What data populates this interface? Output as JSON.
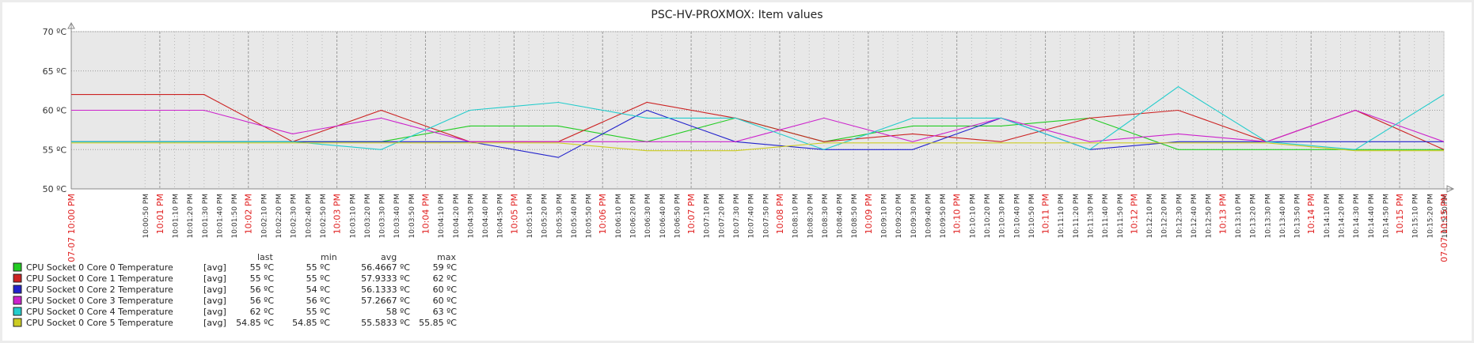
{
  "chart_data": {
    "type": "line",
    "title": "PSC-HV-PROXMOX: Item values",
    "y_unit": "ºC",
    "ylim": [
      50,
      70
    ],
    "y_ticks": [
      50,
      55,
      60,
      65,
      70
    ],
    "grid": true,
    "x": [
      "10:00 PM",
      "10:05 PM",
      "10:10 PM",
      "10:15 PM"
    ],
    "x_start_label": "07-07 10:00 PM",
    "x_end_label": "07-07 10:15 PM",
    "x_tick_labels": [
      "07-07 10:00 PM",
      "10:00:50 PM",
      "10:01 PM",
      "10:01:10 PM",
      "10:01:20 PM",
      "10:01:30 PM",
      "10:01:40 PM",
      "10:01:50 PM",
      "10:02 PM",
      "10:02:10 PM",
      "10:02:20 PM",
      "10:02:30 PM",
      "10:02:40 PM",
      "10:02:50 PM",
      "10:03 PM",
      "10:03:10 PM",
      "10:03:20 PM",
      "10:03:30 PM",
      "10:03:40 PM",
      "10:03:50 PM",
      "10:04 PM",
      "10:04:10 PM",
      "10:04:20 PM",
      "10:04:30 PM",
      "10:04:40 PM",
      "10:04:50 PM",
      "10:05 PM",
      "10:05:10 PM",
      "10:05:20 PM",
      "10:05:30 PM",
      "10:05:40 PM",
      "10:05:50 PM",
      "10:06 PM",
      "10:06:10 PM",
      "10:06:20 PM",
      "10:06:30 PM",
      "10:06:40 PM",
      "10:06:50 PM",
      "10:07 PM",
      "10:07:10 PM",
      "10:07:20 PM",
      "10:07:30 PM",
      "10:07:40 PM",
      "10:07:50 PM",
      "10:08 PM",
      "10:08:10 PM",
      "10:08:20 PM",
      "10:08:30 PM",
      "10:08:40 PM",
      "10:08:50 PM",
      "10:09 PM",
      "10:09:10 PM",
      "10:09:20 PM",
      "10:09:30 PM",
      "10:09:40 PM",
      "10:09:50 PM",
      "10:10 PM",
      "10:10:10 PM",
      "10:10:20 PM",
      "10:10:30 PM",
      "10:10:40 PM",
      "10:10:50 PM",
      "10:11 PM",
      "10:11:10 PM",
      "10:11:20 PM",
      "10:11:30 PM",
      "10:11:40 PM",
      "10:11:50 PM",
      "10:12 PM",
      "10:12:10 PM",
      "10:12:20 PM",
      "10:12:30 PM",
      "10:12:40 PM",
      "10:12:50 PM",
      "10:13 PM",
      "10:13:10 PM",
      "10:13:20 PM",
      "10:13:30 PM",
      "10:13:40 PM",
      "10:13:50 PM",
      "10:14 PM",
      "10:14:10 PM",
      "10:14:20 PM",
      "10:14:30 PM",
      "10:14:40 PM",
      "10:14:50 PM",
      "10:15 PM",
      "10:15:10 PM",
      "10:15:20 PM",
      "10:15:30 PM",
      "07-07 10:15 PM"
    ],
    "legend_headers": [
      "last",
      "min",
      "avg",
      "max"
    ],
    "series": [
      {
        "name": "CPU Socket 0 Core 0 Temperature",
        "func": "[avg]",
        "color": "#22cc22",
        "stats": [
          "55 ºC",
          "55 ºC",
          "56.4667 ºC",
          "59 ºC"
        ],
        "points": [
          [
            "10:00:00",
            56
          ],
          [
            "10:02:30",
            56
          ],
          [
            "10:03:30",
            56
          ],
          [
            "10:04:30",
            58
          ],
          [
            "10:05:30",
            58
          ],
          [
            "10:06:30",
            56
          ],
          [
            "10:07:30",
            59
          ],
          [
            "10:08:30",
            56
          ],
          [
            "10:09:30",
            58
          ],
          [
            "10:10:30",
            58
          ],
          [
            "10:11:30",
            59
          ],
          [
            "10:12:30",
            55
          ],
          [
            "10:13:30",
            55
          ],
          [
            "10:14:30",
            55
          ],
          [
            "10:15:30",
            55
          ]
        ]
      },
      {
        "name": "CPU Socket 0 Core 1 Temperature",
        "func": "[avg]",
        "color": "#cc2222",
        "stats": [
          "55 ºC",
          "55 ºC",
          "57.9333 ºC",
          "62 ºC"
        ],
        "points": [
          [
            "10:00:00",
            62
          ],
          [
            "10:01:30",
            62
          ],
          [
            "10:02:30",
            56
          ],
          [
            "10:03:30",
            60
          ],
          [
            "10:04:30",
            56
          ],
          [
            "10:05:30",
            56
          ],
          [
            "10:06:30",
            61
          ],
          [
            "10:07:30",
            59
          ],
          [
            "10:08:30",
            56
          ],
          [
            "10:09:30",
            57
          ],
          [
            "10:10:30",
            56
          ],
          [
            "10:11:30",
            59
          ],
          [
            "10:12:30",
            60
          ],
          [
            "10:13:30",
            56
          ],
          [
            "10:14:30",
            60
          ],
          [
            "10:15:30",
            55
          ]
        ]
      },
      {
        "name": "CPU Socket 0 Core 2 Temperature",
        "func": "[avg]",
        "color": "#2222cc",
        "stats": [
          "56 ºC",
          "54 ºC",
          "56.1333 ºC",
          "60 ºC"
        ],
        "points": [
          [
            "10:00:00",
            56
          ],
          [
            "10:04:30",
            56
          ],
          [
            "10:05:30",
            54
          ],
          [
            "10:06:30",
            60
          ],
          [
            "10:07:30",
            56
          ],
          [
            "10:08:30",
            55
          ],
          [
            "10:09:30",
            55
          ],
          [
            "10:10:30",
            59
          ],
          [
            "10:11:30",
            55
          ],
          [
            "10:12:30",
            56
          ],
          [
            "10:13:30",
            56
          ],
          [
            "10:14:30",
            56
          ],
          [
            "10:15:30",
            56
          ]
        ]
      },
      {
        "name": "CPU Socket 0 Core 3 Temperature",
        "func": "[avg]",
        "color": "#cc22cc",
        "stats": [
          "56 ºC",
          "56 ºC",
          "57.2667 ºC",
          "60 ºC"
        ],
        "points": [
          [
            "10:00:00",
            60
          ],
          [
            "10:01:30",
            60
          ],
          [
            "10:02:30",
            57
          ],
          [
            "10:03:30",
            59
          ],
          [
            "10:04:30",
            56
          ],
          [
            "10:05:30",
            56
          ],
          [
            "10:06:30",
            56
          ],
          [
            "10:07:30",
            56
          ],
          [
            "10:08:30",
            59
          ],
          [
            "10:09:30",
            56
          ],
          [
            "10:10:30",
            59
          ],
          [
            "10:11:30",
            56
          ],
          [
            "10:12:30",
            57
          ],
          [
            "10:13:30",
            56
          ],
          [
            "10:14:30",
            60
          ],
          [
            "10:15:30",
            56
          ]
        ]
      },
      {
        "name": "CPU Socket 0 Core 4 Temperature",
        "func": "[avg]",
        "color": "#22cccc",
        "stats": [
          "62 ºC",
          "55 ºC",
          "58 ºC",
          "63 ºC"
        ],
        "points": [
          [
            "10:00:00",
            56
          ],
          [
            "10:02:30",
            56
          ],
          [
            "10:03:30",
            55
          ],
          [
            "10:04:30",
            60
          ],
          [
            "10:05:30",
            61
          ],
          [
            "10:06:30",
            59
          ],
          [
            "10:07:30",
            59
          ],
          [
            "10:08:30",
            55
          ],
          [
            "10:09:30",
            59
          ],
          [
            "10:10:30",
            59
          ],
          [
            "10:11:30",
            55
          ],
          [
            "10:12:30",
            63
          ],
          [
            "10:13:30",
            56
          ],
          [
            "10:14:30",
            55
          ],
          [
            "10:15:30",
            62
          ]
        ]
      },
      {
        "name": "CPU Socket 0 Core 5 Temperature",
        "func": "[avg]",
        "color": "#cccc22",
        "stats": [
          "54.85 ºC",
          "54.85 ºC",
          "55.5833 ºC",
          "55.85 ºC"
        ],
        "points": [
          [
            "10:00:00",
            55.85
          ],
          [
            "10:05:30",
            55.85
          ],
          [
            "10:06:30",
            54.85
          ],
          [
            "10:07:30",
            54.85
          ],
          [
            "10:08:30",
            55.85
          ],
          [
            "10:11:30",
            55.85
          ],
          [
            "10:12:30",
            55.85
          ],
          [
            "10:13:30",
            55.85
          ],
          [
            "10:14:30",
            54.85
          ],
          [
            "10:15:30",
            54.85
          ]
        ]
      }
    ]
  }
}
